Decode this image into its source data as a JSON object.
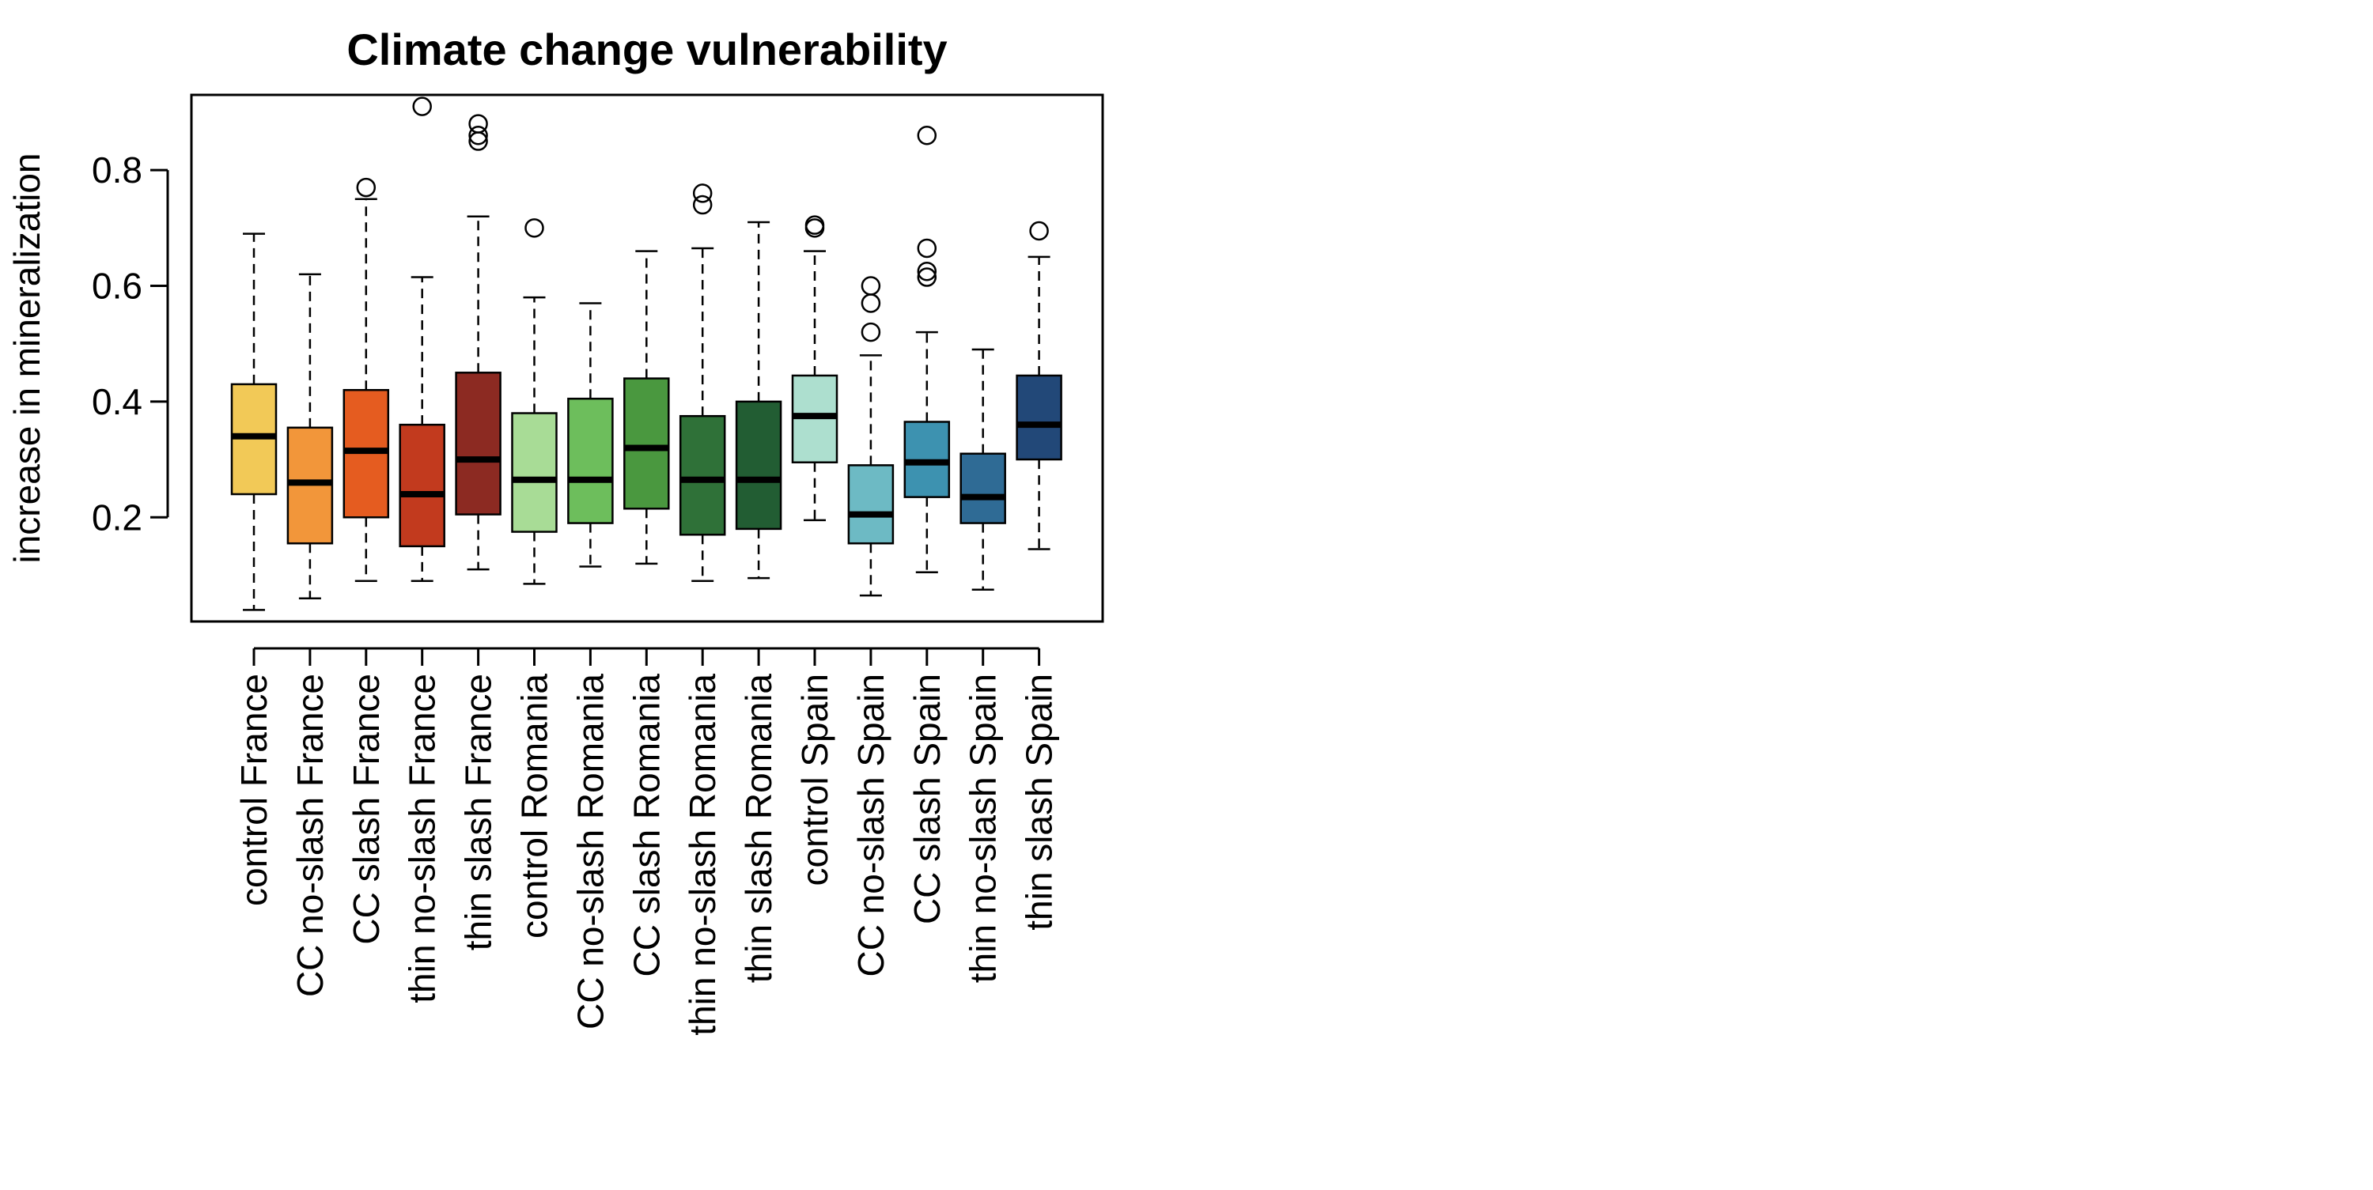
{
  "chart_data": {
    "type": "boxplot",
    "title": "Climate change vulnerability",
    "xlabel": "",
    "ylabel": "increase in mineralization",
    "ylim": [
      0.02,
      0.93
    ],
    "yticks": [
      "0.2",
      "0.4",
      "0.6",
      "0.8"
    ],
    "grid": false,
    "legend": "none",
    "categories": [
      "control France",
      "CC no-slash France",
      "CC slash France",
      "thin no-slash France",
      "thin slash France",
      "control Romania",
      "CC no-slash Romania",
      "CC slash Romania",
      "thin no-slash Romania",
      "thin slash Romania",
      "control Spain",
      "CC no-slash Spain",
      "CC slash Spain",
      "thin no-slash Spain",
      "thin slash Spain"
    ],
    "colors": [
      "#f2c957",
      "#f2963a",
      "#e55c20",
      "#c23a1e",
      "#8c2a22",
      "#a8dc96",
      "#6dbe5c",
      "#4a983f",
      "#2f7138",
      "#225d33",
      "#addfcf",
      "#6dbac4",
      "#3d92b0",
      "#2f6b95",
      "#224878"
    ],
    "boxes": [
      {
        "min": 0.04,
        "q1": 0.24,
        "median": 0.34,
        "q3": 0.43,
        "max": 0.69,
        "outliers": []
      },
      {
        "min": 0.06,
        "q1": 0.155,
        "median": 0.26,
        "q3": 0.355,
        "max": 0.62,
        "outliers": []
      },
      {
        "min": 0.09,
        "q1": 0.2,
        "median": 0.315,
        "q3": 0.42,
        "max": 0.75,
        "outliers": [
          0.77
        ]
      },
      {
        "min": 0.09,
        "q1": 0.15,
        "median": 0.24,
        "q3": 0.36,
        "max": 0.615,
        "outliers": [
          0.91
        ]
      },
      {
        "min": 0.11,
        "q1": 0.205,
        "median": 0.3,
        "q3": 0.45,
        "max": 0.72,
        "outliers": [
          0.85,
          0.86,
          0.88
        ]
      },
      {
        "min": 0.085,
        "q1": 0.175,
        "median": 0.265,
        "q3": 0.38,
        "max": 0.58,
        "outliers": [
          0.7
        ]
      },
      {
        "min": 0.115,
        "q1": 0.19,
        "median": 0.265,
        "q3": 0.405,
        "max": 0.57,
        "outliers": []
      },
      {
        "min": 0.12,
        "q1": 0.215,
        "median": 0.32,
        "q3": 0.44,
        "max": 0.66,
        "outliers": []
      },
      {
        "min": 0.09,
        "q1": 0.17,
        "median": 0.265,
        "q3": 0.375,
        "max": 0.665,
        "outliers": [
          0.74,
          0.76
        ]
      },
      {
        "min": 0.095,
        "q1": 0.18,
        "median": 0.265,
        "q3": 0.4,
        "max": 0.71,
        "outliers": []
      },
      {
        "min": 0.195,
        "q1": 0.295,
        "median": 0.375,
        "q3": 0.445,
        "max": 0.66,
        "outliers": [
          0.7,
          0.705
        ]
      },
      {
        "min": 0.065,
        "q1": 0.155,
        "median": 0.205,
        "q3": 0.29,
        "max": 0.48,
        "outliers": [
          0.52,
          0.57,
          0.6
        ]
      },
      {
        "min": 0.105,
        "q1": 0.235,
        "median": 0.295,
        "q3": 0.365,
        "max": 0.52,
        "outliers": [
          0.615,
          0.625,
          0.665,
          0.86
        ]
      },
      {
        "min": 0.075,
        "q1": 0.19,
        "median": 0.235,
        "q3": 0.31,
        "max": 0.49,
        "outliers": []
      },
      {
        "min": 0.145,
        "q1": 0.3,
        "median": 0.36,
        "q3": 0.445,
        "max": 0.65,
        "outliers": [
          0.695
        ]
      }
    ]
  }
}
